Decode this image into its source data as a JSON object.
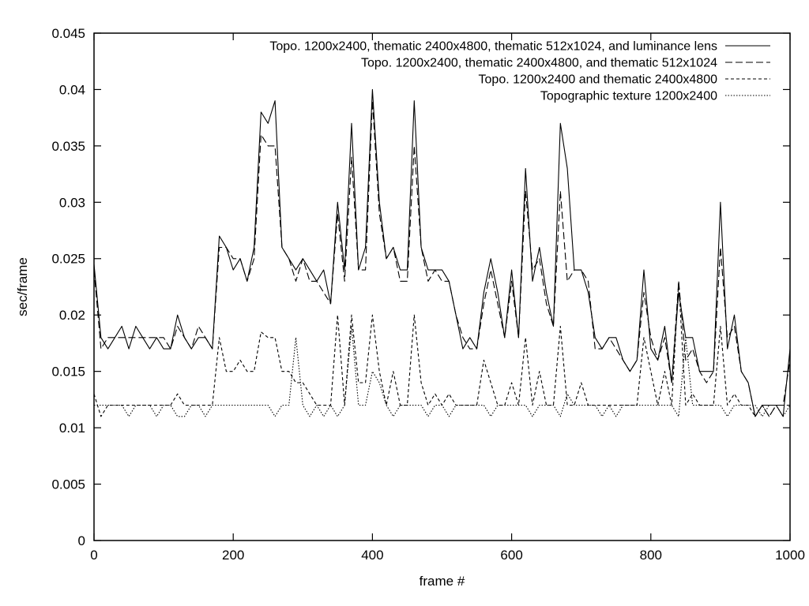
{
  "chart_data": {
    "type": "line",
    "xlabel": "frame #",
    "ylabel": "sec/frame",
    "xlim": [
      0,
      1000
    ],
    "ylim": [
      0,
      0.045
    ],
    "xticks": [
      0,
      200,
      400,
      600,
      800,
      1000
    ],
    "yticks": [
      0,
      0.005,
      0.01,
      0.015,
      0.02,
      0.025,
      0.03,
      0.035,
      0.04,
      0.045
    ],
    "xtick_labels": [
      "0",
      "200",
      "400",
      "600",
      "800",
      "1000"
    ],
    "ytick_labels": [
      "0",
      "0.005",
      "0.01",
      "0.015",
      "0.02",
      "0.025",
      "0.03",
      "0.035",
      "0.04",
      "0.045"
    ],
    "grid": false,
    "legend_position": "top-right",
    "x": [
      0,
      10,
      20,
      30,
      40,
      50,
      60,
      70,
      80,
      90,
      100,
      110,
      120,
      130,
      140,
      150,
      160,
      170,
      180,
      190,
      200,
      210,
      220,
      230,
      240,
      250,
      260,
      270,
      280,
      290,
      300,
      310,
      320,
      330,
      340,
      350,
      360,
      370,
      380,
      390,
      400,
      410,
      420,
      430,
      440,
      450,
      460,
      470,
      480,
      490,
      500,
      510,
      520,
      530,
      540,
      550,
      560,
      570,
      580,
      590,
      600,
      610,
      620,
      630,
      640,
      650,
      660,
      670,
      680,
      690,
      700,
      710,
      720,
      730,
      740,
      750,
      760,
      770,
      780,
      790,
      800,
      810,
      820,
      830,
      840,
      850,
      860,
      870,
      880,
      890,
      900,
      910,
      920,
      930,
      940,
      950,
      960,
      970,
      980,
      990,
      1000
    ],
    "series": [
      {
        "name": "Topo. 1200x2400, thematic 2400x4800, thematic 512x1024, and luminance lens",
        "style": "solid",
        "values": [
          0.0245,
          0.018,
          0.017,
          0.018,
          0.019,
          0.017,
          0.019,
          0.018,
          0.017,
          0.018,
          0.017,
          0.017,
          0.02,
          0.018,
          0.017,
          0.018,
          0.018,
          0.017,
          0.027,
          0.026,
          0.024,
          0.025,
          0.023,
          0.026,
          0.038,
          0.037,
          0.039,
          0.026,
          0.025,
          0.024,
          0.025,
          0.024,
          0.023,
          0.024,
          0.021,
          0.03,
          0.024,
          0.037,
          0.024,
          0.026,
          0.04,
          0.03,
          0.025,
          0.026,
          0.024,
          0.024,
          0.039,
          0.026,
          0.024,
          0.024,
          0.024,
          0.023,
          0.02,
          0.017,
          0.018,
          0.017,
          0.022,
          0.025,
          0.022,
          0.018,
          0.024,
          0.018,
          0.033,
          0.023,
          0.026,
          0.022,
          0.019,
          0.037,
          0.033,
          0.024,
          0.024,
          0.022,
          0.018,
          0.017,
          0.018,
          0.018,
          0.016,
          0.015,
          0.016,
          0.024,
          0.017,
          0.016,
          0.019,
          0.014,
          0.022,
          0.018,
          0.018,
          0.015,
          0.015,
          0.015,
          0.03,
          0.017,
          0.02,
          0.015,
          0.014,
          0.011,
          0.012,
          0.012,
          0.012,
          0.011,
          0.017
        ]
      },
      {
        "name": "Topo. 1200x2400, thematic 2400x4800, and thematic 512x1024",
        "style": "long-dash",
        "values": [
          0.024,
          0.017,
          0.018,
          0.018,
          0.018,
          0.018,
          0.018,
          0.018,
          0.018,
          0.018,
          0.018,
          0.017,
          0.019,
          0.018,
          0.017,
          0.019,
          0.018,
          0.017,
          0.026,
          0.026,
          0.025,
          0.025,
          0.023,
          0.025,
          0.036,
          0.035,
          0.035,
          0.026,
          0.025,
          0.023,
          0.025,
          0.023,
          0.023,
          0.022,
          0.021,
          0.029,
          0.023,
          0.034,
          0.024,
          0.024,
          0.039,
          0.029,
          0.025,
          0.026,
          0.023,
          0.023,
          0.035,
          0.026,
          0.023,
          0.024,
          0.023,
          0.023,
          0.02,
          0.018,
          0.017,
          0.017,
          0.021,
          0.024,
          0.021,
          0.018,
          0.023,
          0.018,
          0.031,
          0.024,
          0.025,
          0.021,
          0.019,
          0.031,
          0.023,
          0.024,
          0.024,
          0.023,
          0.017,
          0.017,
          0.018,
          0.017,
          0.016,
          0.015,
          0.016,
          0.022,
          0.018,
          0.016,
          0.018,
          0.014,
          0.023,
          0.016,
          0.017,
          0.015,
          0.014,
          0.015,
          0.026,
          0.018,
          0.019,
          0.015,
          0.014,
          0.011,
          0.012,
          0.011,
          0.012,
          0.012,
          0.016
        ]
      },
      {
        "name": "Topo. 1200x2400 and thematic 2400x4800",
        "style": "short-dash",
        "values": [
          0.013,
          0.011,
          0.012,
          0.012,
          0.012,
          0.012,
          0.012,
          0.012,
          0.012,
          0.012,
          0.012,
          0.012,
          0.013,
          0.012,
          0.012,
          0.012,
          0.012,
          0.012,
          0.018,
          0.015,
          0.015,
          0.016,
          0.015,
          0.015,
          0.0185,
          0.018,
          0.018,
          0.015,
          0.015,
          0.014,
          0.014,
          0.013,
          0.012,
          0.012,
          0.012,
          0.02,
          0.012,
          0.02,
          0.014,
          0.014,
          0.02,
          0.015,
          0.012,
          0.015,
          0.012,
          0.012,
          0.02,
          0.014,
          0.012,
          0.013,
          0.012,
          0.013,
          0.012,
          0.012,
          0.012,
          0.012,
          0.016,
          0.014,
          0.012,
          0.012,
          0.014,
          0.012,
          0.018,
          0.012,
          0.015,
          0.012,
          0.012,
          0.019,
          0.012,
          0.012,
          0.014,
          0.012,
          0.012,
          0.012,
          0.012,
          0.012,
          0.012,
          0.012,
          0.012,
          0.018,
          0.015,
          0.012,
          0.015,
          0.012,
          0.023,
          0.012,
          0.013,
          0.012,
          0.012,
          0.012,
          0.019,
          0.012,
          0.013,
          0.012,
          0.012,
          0.011,
          0.012,
          0.011,
          0.012,
          0.012,
          0.012
        ]
      },
      {
        "name": "Topographic texture 1200x2400",
        "style": "dotted",
        "values": [
          0.012,
          0.012,
          0.012,
          0.012,
          0.012,
          0.011,
          0.012,
          0.012,
          0.012,
          0.011,
          0.012,
          0.012,
          0.011,
          0.011,
          0.012,
          0.012,
          0.011,
          0.012,
          0.012,
          0.012,
          0.012,
          0.012,
          0.012,
          0.012,
          0.012,
          0.012,
          0.011,
          0.012,
          0.012,
          0.018,
          0.012,
          0.011,
          0.012,
          0.011,
          0.012,
          0.011,
          0.012,
          0.019,
          0.012,
          0.012,
          0.015,
          0.014,
          0.012,
          0.011,
          0.012,
          0.012,
          0.012,
          0.012,
          0.011,
          0.012,
          0.012,
          0.011,
          0.012,
          0.012,
          0.012,
          0.012,
          0.012,
          0.011,
          0.012,
          0.012,
          0.012,
          0.012,
          0.012,
          0.011,
          0.012,
          0.012,
          0.012,
          0.011,
          0.013,
          0.012,
          0.012,
          0.012,
          0.012,
          0.011,
          0.012,
          0.011,
          0.012,
          0.012,
          0.012,
          0.012,
          0.012,
          0.012,
          0.012,
          0.012,
          0.011,
          0.018,
          0.012,
          0.012,
          0.012,
          0.012,
          0.012,
          0.011,
          0.012,
          0.012,
          0.012,
          0.012,
          0.011,
          0.012,
          0.012,
          0.011,
          0.012
        ]
      }
    ]
  }
}
